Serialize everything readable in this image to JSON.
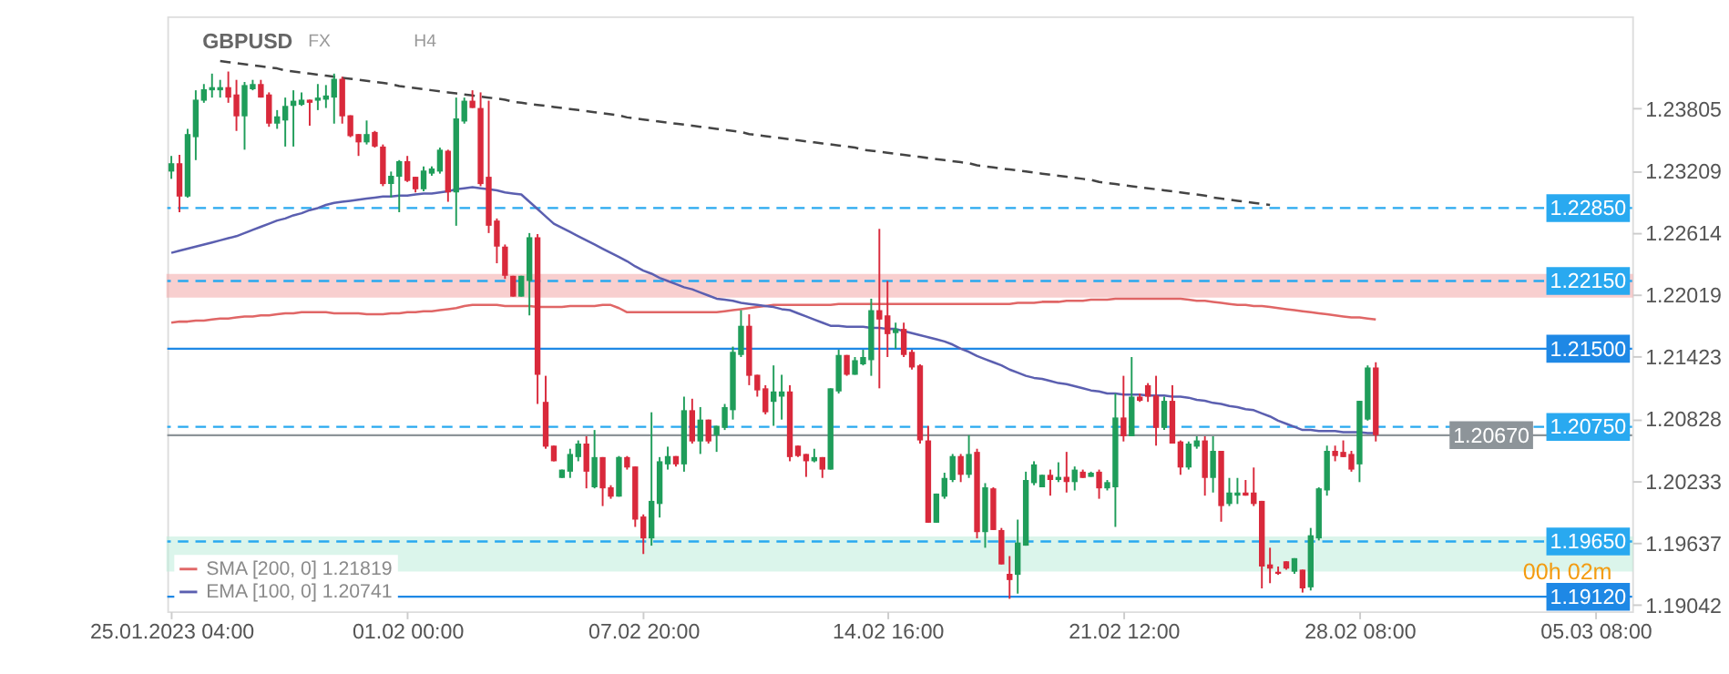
{
  "chart_data": {
    "type": "candlestick",
    "title": "GBPUSD",
    "annotations": [
      "FX",
      "H4",
      "00h 02m"
    ],
    "categories": [
      "25.01.2023 04:00",
      null,
      null,
      null,
      null,
      null,
      null,
      null,
      null,
      null,
      null,
      null,
      null,
      null,
      null,
      null,
      null,
      null,
      null,
      null,
      null,
      null,
      null,
      null,
      null,
      null,
      null,
      null,
      null,
      "01.02 00:00",
      null,
      null,
      null,
      null,
      null,
      null,
      null,
      null,
      null,
      null,
      null,
      null,
      null,
      null,
      null,
      null,
      null,
      null,
      null,
      null,
      null,
      null,
      null,
      null,
      null,
      null,
      null,
      null,
      "07.02 20:00",
      null,
      null,
      null,
      null,
      null,
      null,
      null,
      null,
      null,
      null,
      null,
      null,
      null,
      null,
      null,
      null,
      null,
      null,
      null,
      null,
      null,
      null,
      null,
      null,
      null,
      null,
      null,
      null,
      null,
      "14.02 16:00",
      null,
      null,
      null,
      null,
      null,
      null,
      null,
      null,
      null,
      null,
      null,
      null,
      null,
      null,
      null,
      null,
      null,
      null,
      null,
      null,
      null,
      null,
      null,
      null,
      null,
      null,
      null,
      null,
      "21.02 12:00",
      null,
      null,
      null,
      null,
      null,
      null,
      null,
      null,
      null,
      null,
      null,
      null,
      null,
      null,
      null,
      null,
      null,
      null,
      null,
      null,
      null,
      null,
      null,
      null,
      null,
      null,
      null,
      null,
      "28.02 08:00",
      null,
      null,
      null,
      null,
      null,
      null,
      null,
      null,
      null,
      null,
      null,
      null,
      null,
      null,
      null,
      null,
      null,
      null,
      null,
      null,
      null,
      null,
      null,
      null,
      null,
      null,
      null,
      null,
      "05.03 08:00",
      null,
      null,
      null,
      null
    ],
    "ohlc": [
      [
        1.232,
        1.2335,
        1.2313,
        1.2328
      ],
      [
        1.2328,
        1.2336,
        1.2281,
        1.2296
      ],
      [
        1.2296,
        1.2361,
        1.2295,
        1.2356
      ],
      [
        1.2353,
        1.2398,
        1.2331,
        1.2389
      ],
      [
        1.2388,
        1.2404,
        1.2386,
        1.2399
      ],
      [
        1.2398,
        1.2414,
        1.2391,
        1.2401
      ],
      [
        1.2398,
        1.2408,
        1.2391,
        1.2401
      ],
      [
        1.2401,
        1.2416,
        1.2386,
        1.2391
      ],
      [
        1.2394,
        1.2408,
        1.2359,
        1.2373
      ],
      [
        1.2373,
        1.2406,
        1.2341,
        1.2403
      ],
      [
        1.2399,
        1.2408,
        1.2398,
        1.2404
      ],
      [
        1.2404,
        1.2408,
        1.2391,
        1.2391
      ],
      [
        1.2394,
        1.2396,
        1.2363,
        1.2366
      ],
      [
        1.2366,
        1.2379,
        1.2361,
        1.2373
      ],
      [
        1.2369,
        1.2391,
        1.2344,
        1.2383
      ],
      [
        1.2383,
        1.2398,
        1.2344,
        1.2388
      ],
      [
        1.2384,
        1.2396,
        1.2383,
        1.2389
      ],
      [
        1.2389,
        1.2389,
        1.2364,
        1.2386
      ],
      [
        1.2388,
        1.2404,
        1.2379,
        1.2391
      ],
      [
        1.2389,
        1.2403,
        1.2381,
        1.2393
      ],
      [
        1.2391,
        1.2414,
        1.2366,
        1.2409
      ],
      [
        1.2409,
        1.2411,
        1.2366,
        1.2373
      ],
      [
        1.2374,
        1.2374,
        1.2353,
        1.2354
      ],
      [
        1.2356,
        1.2356,
        1.2335,
        1.2348
      ],
      [
        1.2348,
        1.2369,
        1.2346,
        1.2356
      ],
      [
        1.2358,
        1.2359,
        1.2343,
        1.2344
      ],
      [
        1.2344,
        1.2346,
        1.2306,
        1.2308
      ],
      [
        1.2308,
        1.232,
        1.2295,
        1.2316
      ],
      [
        1.2315,
        1.2331,
        1.2281,
        1.233
      ],
      [
        1.233,
        1.2335,
        1.231,
        1.2311
      ],
      [
        1.2315,
        1.2315,
        1.23,
        1.2303
      ],
      [
        1.2303,
        1.2325,
        1.2301,
        1.2321
      ],
      [
        1.2318,
        1.2325,
        1.2316,
        1.2323
      ],
      [
        1.232,
        1.2343,
        1.2318,
        1.2341
      ],
      [
        1.234,
        1.2341,
        1.2291,
        1.23
      ],
      [
        1.23,
        1.2391,
        1.2268,
        1.2371
      ],
      [
        1.2368,
        1.2391,
        1.2366,
        1.2388
      ],
      [
        1.2388,
        1.2398,
        1.2381,
        1.2381
      ],
      [
        1.2381,
        1.2396,
        1.2306,
        1.2308
      ],
      [
        1.2315,
        1.2388,
        1.2261,
        1.2268
      ],
      [
        1.2273,
        1.2275,
        1.2232,
        1.2248
      ],
      [
        1.2248,
        1.225,
        1.2217,
        1.222
      ],
      [
        1.222,
        1.222,
        1.22,
        1.22
      ],
      [
        1.22,
        1.222,
        1.22,
        1.222
      ],
      [
        1.2215,
        1.2261,
        1.2182,
        1.2257
      ],
      [
        1.2257,
        1.226,
        1.2097,
        1.2125
      ],
      [
        1.2099,
        1.2124,
        1.2054,
        1.2056
      ],
      [
        1.2057,
        1.2057,
        1.2042,
        1.2042
      ],
      [
        1.2026,
        1.2034,
        1.2026,
        1.2034
      ],
      [
        1.2032,
        1.2054,
        1.2026,
        1.2049
      ],
      [
        1.2046,
        1.2062,
        1.2042,
        1.2059
      ],
      [
        1.2059,
        1.2066,
        1.2016,
        1.2032
      ],
      [
        1.2017,
        1.2072,
        1.2016,
        1.2046
      ],
      [
        1.2046,
        1.2046,
        1.1999,
        1.2016
      ],
      [
        1.2017,
        1.2019,
        1.2006,
        1.2008
      ],
      [
        1.2008,
        1.2047,
        1.2008,
        1.2046
      ],
      [
        1.2046,
        1.2047,
        1.2034,
        1.2036
      ],
      [
        1.2037,
        1.2037,
        1.1979,
        1.1986
      ],
      [
        1.1989,
        1.1991,
        1.1953,
        1.1968
      ],
      [
        1.1968,
        1.2089,
        1.1961,
        1.2004
      ],
      [
        1.2001,
        1.2046,
        1.1988,
        1.2042
      ],
      [
        1.2039,
        1.2056,
        1.2034,
        1.2047
      ],
      [
        1.2047,
        1.2047,
        1.2037,
        1.2039
      ],
      [
        1.2039,
        1.2104,
        1.2032,
        1.2091
      ],
      [
        1.2091,
        1.2102,
        1.2059,
        1.2061
      ],
      [
        1.2061,
        1.2094,
        1.2049,
        1.2082
      ],
      [
        1.2082,
        1.2082,
        1.2059,
        1.2061
      ],
      [
        1.2067,
        1.2076,
        1.2051,
        1.2076
      ],
      [
        1.2074,
        1.2097,
        1.2072,
        1.2094
      ],
      [
        1.2091,
        1.2152,
        1.2082,
        1.2147
      ],
      [
        1.2144,
        1.2187,
        1.2142,
        1.2172
      ],
      [
        1.2172,
        1.2183,
        1.2115,
        1.2124
      ],
      [
        1.2125,
        1.2125,
        1.2104,
        1.211
      ],
      [
        1.2112,
        1.2115,
        1.2087,
        1.2089
      ],
      [
        1.2099,
        1.2134,
        1.2076,
        1.2109
      ],
      [
        1.2104,
        1.2125,
        1.2082,
        1.2109
      ],
      [
        1.2109,
        1.2115,
        1.2042,
        1.2046
      ],
      [
        1.2057,
        1.2057,
        1.2046,
        1.2047
      ],
      [
        1.2049,
        1.2049,
        1.2027,
        1.2042
      ],
      [
        1.2042,
        1.2054,
        1.2041,
        1.2046
      ],
      [
        1.2046,
        1.2046,
        1.2026,
        1.2034
      ],
      [
        1.2034,
        1.2112,
        1.2034,
        1.2112
      ],
      [
        1.2109,
        1.2149,
        1.2107,
        1.2144
      ],
      [
        1.2144,
        1.2144,
        1.2124,
        1.2125
      ],
      [
        1.2125,
        1.2142,
        1.2125,
        1.2139
      ],
      [
        1.2135,
        1.2149,
        1.2134,
        1.2142
      ],
      [
        1.2139,
        1.2198,
        1.2124,
        1.2187
      ],
      [
        1.2187,
        1.2265,
        1.2112,
        1.2178
      ],
      [
        1.2182,
        1.2215,
        1.2142,
        1.2164
      ],
      [
        1.2165,
        1.2175,
        1.215,
        1.2169
      ],
      [
        1.2169,
        1.2175,
        1.2142,
        1.2144
      ],
      [
        1.2147,
        1.2149,
        1.213,
        1.2132
      ],
      [
        1.2134,
        1.2135,
        1.2059,
        1.2062
      ],
      [
        1.2062,
        1.2076,
        1.1983,
        1.1983
      ],
      [
        1.1983,
        1.2011,
        1.1983,
        1.2011
      ],
      [
        1.2008,
        1.2031,
        1.2006,
        1.2026
      ],
      [
        1.2024,
        1.2049,
        1.2022,
        1.2047
      ],
      [
        1.2047,
        1.2049,
        1.2022,
        1.2029
      ],
      [
        1.2029,
        1.2067,
        1.2026,
        1.2049
      ],
      [
        1.2051,
        1.2054,
        1.1968,
        1.1974
      ],
      [
        1.1974,
        1.2021,
        1.1959,
        1.2017
      ],
      [
        1.2016,
        1.2017,
        1.1976,
        1.1976
      ],
      [
        1.1976,
        1.1978,
        1.1943,
        1.1943
      ],
      [
        1.1934,
        1.1951,
        1.191,
        1.1928
      ],
      [
        1.1933,
        1.1986,
        1.1915,
        1.1964
      ],
      [
        1.1961,
        1.2032,
        1.1961,
        1.2024
      ],
      [
        1.2021,
        1.2042,
        1.2019,
        1.2039
      ],
      [
        1.2017,
        1.2029,
        1.2017,
        1.2029
      ],
      [
        1.2029,
        1.2034,
        1.2009,
        1.2024
      ],
      [
        1.2024,
        1.2041,
        1.2022,
        1.2027
      ],
      [
        1.2027,
        1.2051,
        1.2012,
        1.2022
      ],
      [
        1.2022,
        1.2037,
        1.2014,
        1.2034
      ],
      [
        1.2032,
        1.2034,
        1.2026,
        1.2026
      ],
      [
        1.2027,
        1.2032,
        1.2027,
        1.2031
      ],
      [
        1.2032,
        1.2034,
        1.2006,
        1.2016
      ],
      [
        1.2016,
        1.2024,
        1.2014,
        1.2022
      ],
      [
        1.2017,
        1.2107,
        1.1979,
        1.2084
      ],
      [
        1.2084,
        1.2124,
        1.2061,
        1.2066
      ],
      [
        1.2066,
        1.2142,
        1.2066,
        1.2104
      ],
      [
        1.2104,
        1.2107,
        1.2099,
        1.21
      ],
      [
        1.2115,
        1.2117,
        1.2099,
        1.2104
      ],
      [
        1.2105,
        1.2124,
        1.2057,
        1.2074
      ],
      [
        1.2074,
        1.2104,
        1.2072,
        1.21
      ],
      [
        1.21,
        1.2115,
        1.2059,
        1.2059
      ],
      [
        1.2061,
        1.2062,
        1.2029,
        1.2036
      ],
      [
        1.2036,
        1.2061,
        1.2034,
        1.2059
      ],
      [
        1.2056,
        1.2066,
        1.2054,
        1.2062
      ],
      [
        1.2062,
        1.2066,
        1.2009,
        1.2026
      ],
      [
        1.2026,
        1.2066,
        1.2012,
        1.2052
      ],
      [
        1.2052,
        1.2052,
        1.1984,
        1.1999
      ],
      [
        1.2001,
        1.2026,
        1.1999,
        1.2012
      ],
      [
        1.2009,
        1.2026,
        1.2001,
        1.2012
      ],
      [
        1.2012,
        1.2024,
        1.2009,
        1.2009
      ],
      [
        1.2012,
        1.2036,
        1.1999,
        1.2001
      ],
      [
        1.2004,
        1.2004,
        1.192,
        1.1941
      ],
      [
        1.1943,
        1.1959,
        1.1925,
        1.1939
      ],
      [
        1.1936,
        1.1941,
        1.1933,
        1.1934
      ],
      [
        1.1946,
        1.1946,
        1.1938,
        1.1939
      ],
      [
        1.1936,
        1.1949,
        1.1934,
        1.1949
      ],
      [
        1.1938,
        1.1938,
        1.1916,
        1.192
      ],
      [
        1.1921,
        1.1978,
        1.1918,
        1.1971
      ],
      [
        1.1968,
        1.2017,
        1.1966,
        1.2016
      ],
      [
        1.2014,
        1.2057,
        1.2009,
        1.2052
      ],
      [
        1.2052,
        1.2057,
        1.2042,
        1.2047
      ],
      [
        1.2051,
        1.2062,
        1.2046,
        1.2046
      ],
      [
        1.2049,
        1.2052,
        1.2032,
        1.2034
      ],
      [
        1.2039,
        1.21,
        1.2022,
        1.21
      ],
      [
        1.2082,
        1.2134,
        1.2081,
        1.2132
      ],
      [
        1.2132,
        1.2137,
        1.2061,
        1.2067
      ],
      null,
      null,
      null,
      null,
      null,
      null,
      null,
      null,
      null,
      null,
      null,
      null,
      null,
      null,
      null,
      null,
      null,
      null,
      null,
      null,
      null,
      null,
      null,
      null,
      null,
      null,
      null,
      null,
      null,
      null,
      null
    ],
    "colors": [
      "#1f9d5a",
      "#d9293b",
      "#1f9d5a",
      "#1f9d5a",
      "#1f9d5a",
      "#1f9d5a",
      "#1f9d5a",
      "#d9293b",
      "#d9293b",
      "#1f9d5a",
      "#1f9d5a",
      "#d9293b",
      "#d9293b",
      "#1f9d5a",
      "#1f9d5a",
      "#1f9d5a",
      "#1f9d5a",
      "#d9293b",
      "#1f9d5a",
      "#1f9d5a",
      "#1f9d5a",
      "#d9293b",
      "#d9293b",
      "#d9293b",
      "#1f9d5a",
      "#d9293b",
      "#d9293b",
      "#1f9d5a",
      "#1f9d5a",
      "#d9293b",
      "#d9293b",
      "#1f9d5a",
      "#1f9d5a",
      "#1f9d5a",
      "#d9293b",
      "#1f9d5a",
      "#1f9d5a",
      "#d9293b",
      "#d9293b",
      "#d9293b",
      "#d9293b",
      "#d9293b",
      "#d9293b",
      "#1f9d5a",
      "#1f9d5a",
      "#d9293b",
      "#d9293b",
      "#d9293b",
      "#1f9d5a",
      "#1f9d5a",
      "#1f9d5a",
      "#d9293b",
      "#1f9d5a",
      "#d9293b",
      "#d9293b",
      "#1f9d5a",
      "#d9293b",
      "#d9293b",
      "#d9293b",
      "#1f9d5a",
      "#1f9d5a",
      "#1f9d5a",
      "#d9293b",
      "#1f9d5a",
      "#d9293b",
      "#1f9d5a",
      "#d9293b",
      "#1f9d5a",
      "#1f9d5a",
      "#1f9d5a",
      "#1f9d5a",
      "#d9293b",
      "#d9293b",
      "#d9293b",
      "#1f9d5a",
      "#1f9d5a",
      "#d9293b",
      "#d9293b",
      "#d9293b",
      "#1f9d5a",
      "#d9293b",
      "#1f9d5a",
      "#1f9d5a",
      "#d9293b",
      "#1f9d5a",
      "#1f9d5a",
      "#1f9d5a",
      "#d9293b",
      "#d9293b",
      "#1f9d5a",
      "#d9293b",
      "#d9293b",
      "#d9293b",
      "#d9293b",
      "#1f9d5a",
      "#1f9d5a",
      "#1f9d5a",
      "#d9293b",
      "#1f9d5a",
      "#d9293b",
      "#1f9d5a",
      "#d9293b",
      "#d9293b",
      "#d9293b",
      "#1f9d5a",
      "#1f9d5a",
      "#1f9d5a",
      "#1f9d5a",
      "#d9293b",
      "#1f9d5a",
      "#d9293b",
      "#1f9d5a",
      "#d9293b",
      "#1f9d5a",
      "#d9293b",
      "#1f9d5a",
      "#1f9d5a",
      "#d9293b",
      "#1f9d5a",
      "#d9293b",
      "#d9293b",
      "#d9293b",
      "#1f9d5a",
      "#d9293b",
      "#d9293b",
      "#1f9d5a",
      "#1f9d5a",
      "#d9293b",
      "#1f9d5a",
      "#d9293b",
      "#1f9d5a",
      "#1f9d5a",
      "#d9293b",
      "#d9293b",
      "#d9293b",
      "#d9293b",
      "#d9293b",
      "#d9293b",
      "#1f9d5a",
      "#d9293b",
      "#1f9d5a",
      "#1f9d5a",
      "#1f9d5a",
      "#d9293b",
      "#d9293b",
      "#d9293b",
      "#1f9d5a",
      "#1f9d5a",
      "#d9293b",
      null,
      null,
      null,
      null,
      null,
      null,
      null,
      null,
      null,
      null,
      null,
      null,
      null,
      null,
      null,
      null,
      null,
      null,
      null,
      null,
      null,
      null,
      null,
      null,
      null,
      null,
      null,
      null,
      null,
      null,
      null
    ],
    "series": [
      {
        "name": "SMA [200, 0] 1.21819",
        "type": "line",
        "color": "#e06666",
        "values": [
          1.2175,
          1.2176,
          1.2176,
          1.2177,
          1.2177,
          1.2178,
          1.2179,
          1.2179,
          1.218,
          1.2181,
          1.2181,
          1.2182,
          1.2182,
          1.2183,
          1.2184,
          1.2184,
          1.2185,
          1.2185,
          1.2185,
          1.2185,
          1.2184,
          1.2184,
          1.2184,
          1.2184,
          1.2183,
          1.2183,
          1.2183,
          1.2184,
          1.2184,
          1.2185,
          1.2185,
          1.2186,
          1.2186,
          1.2187,
          1.2188,
          1.2189,
          1.2191,
          1.2192,
          1.2192,
          1.2192,
          1.2192,
          1.2191,
          1.2191,
          1.2191,
          1.2191,
          1.219,
          1.219,
          1.219,
          1.219,
          1.2191,
          1.2191,
          1.2191,
          1.2191,
          1.2192,
          1.2192,
          1.2189,
          1.2185,
          1.2185,
          1.2185,
          1.2185,
          1.2185,
          1.2185,
          1.2185,
          1.2185,
          1.2185,
          1.2185,
          1.2185,
          1.2185,
          1.2186,
          1.2187,
          1.2188,
          1.2189,
          1.219,
          1.2191,
          1.2192,
          1.2192,
          1.2192,
          1.2192,
          1.2192,
          1.2192,
          1.2192,
          1.2192,
          1.2193,
          1.2193,
          1.2193,
          1.2193,
          1.2193,
          1.2193,
          1.2193,
          1.2193,
          1.2193,
          1.2193,
          1.2193,
          1.2193,
          1.2193,
          1.2193,
          1.2193,
          1.2193,
          1.2193,
          1.2193,
          1.2193,
          1.2193,
          1.2193,
          1.2193,
          1.2194,
          1.2194,
          1.2194,
          1.2195,
          1.2195,
          1.2195,
          1.2196,
          1.2196,
          1.2196,
          1.2197,
          1.2197,
          1.2197,
          1.2198,
          1.2198,
          1.2198,
          1.2198,
          1.2198,
          1.2198,
          1.2198,
          1.2198,
          1.2198,
          1.2197,
          1.2196,
          1.2196,
          1.2195,
          1.2194,
          1.2193,
          1.2192,
          1.2192,
          1.2191,
          1.2191,
          1.219,
          1.2189,
          1.2188,
          1.2187,
          1.2186,
          1.2185,
          1.2184,
          1.2183,
          1.2182,
          1.2181,
          1.218,
          1.218,
          1.2179,
          1.2178,
          null,
          null,
          null,
          null,
          null,
          null,
          null,
          null,
          null,
          null,
          null,
          null,
          null,
          null,
          null,
          null,
          null,
          null,
          null,
          null,
          null,
          null,
          null,
          null,
          null,
          null,
          null,
          null,
          null,
          null,
          null
        ]
      },
      {
        "name": "EMA [100, 0] 1.20741",
        "type": "line",
        "color": "#5b5fb0",
        "values": [
          1.2242,
          1.2244,
          1.2246,
          1.2248,
          1.225,
          1.2252,
          1.2254,
          1.2256,
          1.2258,
          1.2261,
          1.2264,
          1.2267,
          1.227,
          1.2273,
          1.2275,
          1.2278,
          1.228,
          1.2283,
          1.2285,
          1.2288,
          1.229,
          1.2291,
          1.2292,
          1.2293,
          1.2294,
          1.2295,
          1.2296,
          1.2296,
          1.2297,
          1.2297,
          1.2298,
          1.2299,
          1.2299,
          1.23,
          1.2301,
          1.2303,
          1.2304,
          1.2305,
          1.2304,
          1.2303,
          1.2302,
          1.23,
          1.2299,
          1.2298,
          1.2291,
          1.2284,
          1.2277,
          1.227,
          1.2266,
          1.2262,
          1.2258,
          1.2254,
          1.225,
          1.2246,
          1.2242,
          1.2238,
          1.2234,
          1.2229,
          1.2225,
          1.2222,
          1.2218,
          1.2215,
          1.2212,
          1.2209,
          1.2207,
          1.2204,
          1.2201,
          1.2198,
          1.2197,
          1.2196,
          1.2194,
          1.2193,
          1.2192,
          1.2191,
          1.219,
          1.2188,
          1.2187,
          1.2184,
          1.2181,
          1.2178,
          1.2175,
          1.2172,
          1.2172,
          1.2171,
          1.2171,
          1.2171,
          1.217,
          1.217,
          1.2169,
          1.2169,
          1.2167,
          1.2165,
          1.2163,
          1.2161,
          1.2159,
          1.2157,
          1.2154,
          1.215,
          1.2147,
          1.2143,
          1.214,
          1.2137,
          1.2134,
          1.213,
          1.2127,
          1.2124,
          1.2122,
          1.2121,
          1.2119,
          1.2117,
          1.2116,
          1.2114,
          1.2112,
          1.211,
          1.2109,
          1.2107,
          1.2107,
          1.2106,
          1.2106,
          1.2106,
          1.2105,
          1.2105,
          1.2105,
          1.2104,
          1.2104,
          1.2103,
          1.2101,
          1.21,
          1.2098,
          1.2097,
          1.2095,
          1.2094,
          1.2092,
          1.2091,
          1.2088,
          1.2085,
          1.2081,
          1.2078,
          1.2075,
          1.2072,
          1.2072,
          1.2071,
          1.2071,
          1.2071,
          1.207,
          1.207,
          1.207,
          1.2069,
          1.2069,
          null,
          null,
          null,
          null,
          null,
          null,
          null,
          null,
          null,
          null,
          null,
          null,
          null,
          null,
          null,
          null,
          null,
          null,
          null,
          null,
          null,
          null,
          null,
          null,
          null,
          null,
          null,
          null,
          null,
          null,
          null
        ]
      },
      {
        "type": "line",
        "color": "#444444",
        "line_style": "dashed",
        "values": [
          null,
          null,
          null,
          null,
          null,
          null,
          1.2426,
          1.2425,
          1.2424,
          1.2423,
          1.2422,
          1.2421,
          1.242,
          1.2419,
          1.2417,
          1.2416,
          1.2415,
          1.2414,
          1.2413,
          1.2412,
          1.2411,
          1.241,
          1.2409,
          1.2408,
          1.2407,
          1.2406,
          1.2405,
          1.2404,
          1.2402,
          1.2401,
          1.24,
          1.2399,
          1.2398,
          1.2397,
          1.2396,
          1.2395,
          1.2394,
          1.2393,
          1.2392,
          1.2391,
          1.239,
          1.2389,
          1.2387,
          1.2386,
          1.2385,
          1.2384,
          1.2383,
          1.2382,
          1.2381,
          1.238,
          1.2379,
          1.2378,
          1.2377,
          1.2376,
          1.2375,
          1.2374,
          1.2372,
          1.2371,
          1.237,
          1.2369,
          1.2368,
          1.2367,
          1.2366,
          1.2365,
          1.2364,
          1.2363,
          1.2362,
          1.2361,
          1.236,
          1.2359,
          1.2358,
          1.2356,
          1.2355,
          1.2354,
          1.2353,
          1.2352,
          1.2351,
          1.235,
          1.2349,
          1.2348,
          1.2347,
          1.2346,
          1.2345,
          1.2344,
          1.2343,
          1.2341,
          1.234,
          1.2339,
          1.2338,
          1.2337,
          1.2336,
          1.2335,
          1.2334,
          1.2333,
          1.2332,
          1.2331,
          1.233,
          1.2329,
          1.2328,
          1.2326,
          1.2325,
          1.2324,
          1.2323,
          1.2322,
          1.2321,
          1.232,
          1.2319,
          1.2318,
          1.2317,
          1.2316,
          1.2315,
          1.2314,
          1.2313,
          1.2312,
          1.231,
          1.2309,
          1.2308,
          1.2307,
          1.2306,
          1.2305,
          1.2304,
          1.2303,
          1.2302,
          1.2301,
          1.23,
          1.2299,
          1.2298,
          1.2297,
          1.2295,
          1.2294,
          1.2293,
          1.2292,
          1.2291,
          1.229,
          1.2289,
          1.2288,
          null,
          null,
          null,
          null,
          null,
          null,
          null,
          null,
          null,
          null,
          null,
          null,
          null,
          null,
          null,
          null,
          null,
          null,
          null,
          null,
          null,
          null,
          null,
          null,
          null,
          null,
          null,
          null,
          null,
          null,
          null,
          null,
          null,
          null,
          null,
          null,
          null,
          null,
          null,
          null,
          null,
          null,
          null,
          null
        ]
      }
    ],
    "ylim": [
      1.1898,
      1.2469
    ],
    "yticks": [
      1.19042,
      1.19637,
      1.20233,
      1.20828,
      1.21423,
      1.22019,
      1.22614,
      1.23209,
      1.23805
    ],
    "ref_lines": [
      {
        "axis": "y",
        "value": 1.2285,
        "label": "1.22850",
        "color": "#29a9f0",
        "line_style": "dashed"
      },
      {
        "axis": "y",
        "value": 1.2215,
        "label": "1.22150",
        "color": "#29a9f0",
        "line_style": "dashed"
      },
      {
        "axis": "y",
        "value": 1.215,
        "label": "1.21500",
        "color": "#1e88e5",
        "line_style": "solid"
      },
      {
        "axis": "y",
        "value": 1.2075,
        "label": "1.20750",
        "color": "#29a9f0",
        "line_style": "dashed"
      },
      {
        "axis": "y",
        "value": 1.2067,
        "label": "1.20670",
        "color": "#8d9499",
        "line_style": "solid"
      },
      {
        "axis": "y",
        "value": 1.1965,
        "label": "1.19650",
        "color": "#29a9f0",
        "line_style": "dashed"
      },
      {
        "axis": "y",
        "value": 1.1912,
        "label": "1.19120",
        "color": "#1e88e5",
        "line_style": "solid"
      }
    ],
    "bands": [
      {
        "axis": "y",
        "from": 1.22,
        "to": 1.2221,
        "color": "#f4a9a9"
      },
      {
        "axis": "y",
        "from": 1.1937,
        "to": 1.1969,
        "color": "#bfeedb"
      }
    ],
    "legend": "bottom left",
    "grid": false,
    "marker": "none"
  }
}
